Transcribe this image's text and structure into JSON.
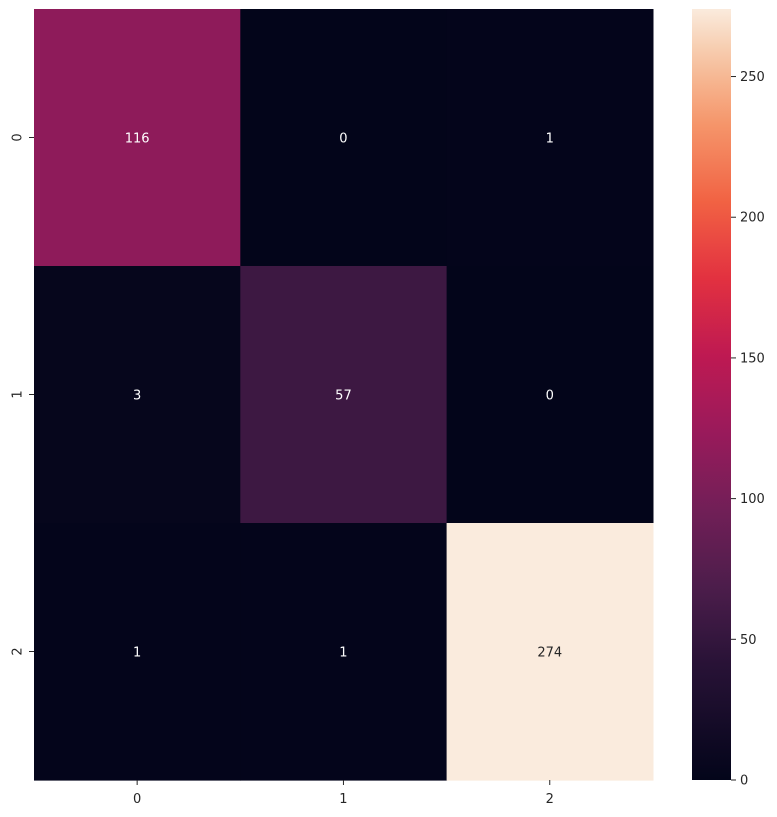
{
  "chart_data": {
    "type": "heatmap",
    "title": "",
    "xlabel": "",
    "ylabel": "",
    "x_categories": [
      "0",
      "1",
      "2"
    ],
    "y_categories": [
      "0",
      "1",
      "2"
    ],
    "values": [
      [
        116,
        0,
        1
      ],
      [
        3,
        57,
        0
      ],
      [
        1,
        1,
        274
      ]
    ],
    "annotations": true,
    "colormap": "rocket",
    "colorbar": {
      "min": 0,
      "max": 274,
      "ticks": [
        0,
        50,
        100,
        150,
        200,
        250
      ],
      "tick_labels": [
        "0",
        "50",
        "100",
        "150",
        "200",
        "250"
      ]
    }
  }
}
